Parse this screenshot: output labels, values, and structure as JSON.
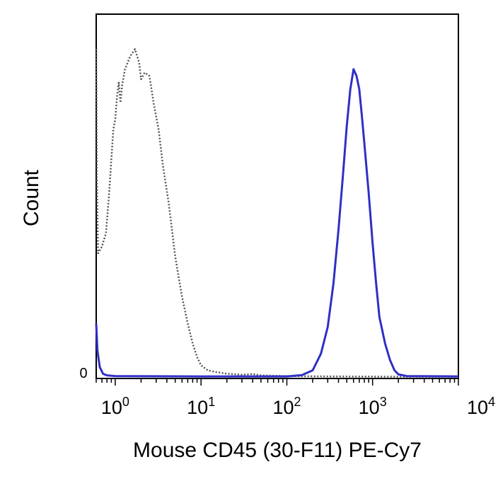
{
  "chart_data": {
    "type": "line",
    "title": "",
    "xlabel": "Mouse CD45 (30-F11) PE-Cy7",
    "ylabel": "Count",
    "x_scale": "log",
    "xlim": [
      0.6,
      10000
    ],
    "y_scale": "linear",
    "ylim": [
      0,
      100
    ],
    "y_tick_labels": [
      "0"
    ],
    "x_ticks": [
      {
        "value": 1,
        "base": "10",
        "exp": "0"
      },
      {
        "value": 10,
        "base": "10",
        "exp": "1"
      },
      {
        "value": 100,
        "base": "10",
        "exp": "2"
      },
      {
        "value": 1000,
        "base": "10",
        "exp": "3"
      },
      {
        "value": 10000,
        "base": "10",
        "exp": "4"
      }
    ],
    "grid": false,
    "legend": "none",
    "series": [
      {
        "style": "dotted",
        "color": "#555555",
        "points": [
          [
            0.6,
            98
          ],
          [
            0.61,
            60
          ],
          [
            0.63,
            37
          ],
          [
            0.7,
            39
          ],
          [
            0.78,
            43
          ],
          [
            0.85,
            55
          ],
          [
            0.9,
            65
          ],
          [
            0.95,
            74
          ],
          [
            1.0,
            77
          ],
          [
            1.05,
            84
          ],
          [
            1.1,
            88
          ],
          [
            1.15,
            82
          ],
          [
            1.2,
            87
          ],
          [
            1.3,
            92
          ],
          [
            1.5,
            96
          ],
          [
            1.7,
            98
          ],
          [
            1.9,
            94
          ],
          [
            2.0,
            89
          ],
          [
            2.2,
            91
          ],
          [
            2.5,
            90
          ],
          [
            2.8,
            82
          ],
          [
            3.2,
            74
          ],
          [
            3.6,
            63
          ],
          [
            4.2,
            52
          ],
          [
            5.0,
            36
          ],
          [
            6.0,
            24
          ],
          [
            7.0,
            16
          ],
          [
            8.0,
            10
          ],
          [
            9.0,
            6
          ],
          [
            10,
            3.5
          ],
          [
            12,
            2
          ],
          [
            15,
            1.5
          ],
          [
            20,
            1
          ],
          [
            30,
            0.7
          ],
          [
            40,
            0.9
          ],
          [
            50,
            0.5
          ],
          [
            100,
            0.3
          ],
          [
            300,
            0.2
          ],
          [
            1000,
            0.15
          ],
          [
            3000,
            0.1
          ],
          [
            10000,
            0.1
          ]
        ]
      },
      {
        "style": "solid",
        "color": "#2f2fc7",
        "points": [
          [
            0.6,
            16
          ],
          [
            0.62,
            8
          ],
          [
            0.66,
            3
          ],
          [
            0.72,
            1
          ],
          [
            0.8,
            0.5
          ],
          [
            1,
            0.3
          ],
          [
            10,
            0.2
          ],
          [
            100,
            0.2
          ],
          [
            150,
            0.6
          ],
          [
            200,
            2
          ],
          [
            250,
            7
          ],
          [
            300,
            15
          ],
          [
            350,
            28
          ],
          [
            400,
            44
          ],
          [
            450,
            60
          ],
          [
            500,
            75
          ],
          [
            550,
            86
          ],
          [
            600,
            92
          ],
          [
            650,
            90
          ],
          [
            700,
            86
          ],
          [
            750,
            78
          ],
          [
            800,
            70
          ],
          [
            900,
            55
          ],
          [
            1000,
            40
          ],
          [
            1100,
            28
          ],
          [
            1200,
            18
          ],
          [
            1400,
            10
          ],
          [
            1600,
            5
          ],
          [
            1800,
            2
          ],
          [
            2000,
            0.8
          ],
          [
            2500,
            0.3
          ],
          [
            10000,
            0.2
          ]
        ]
      }
    ]
  }
}
